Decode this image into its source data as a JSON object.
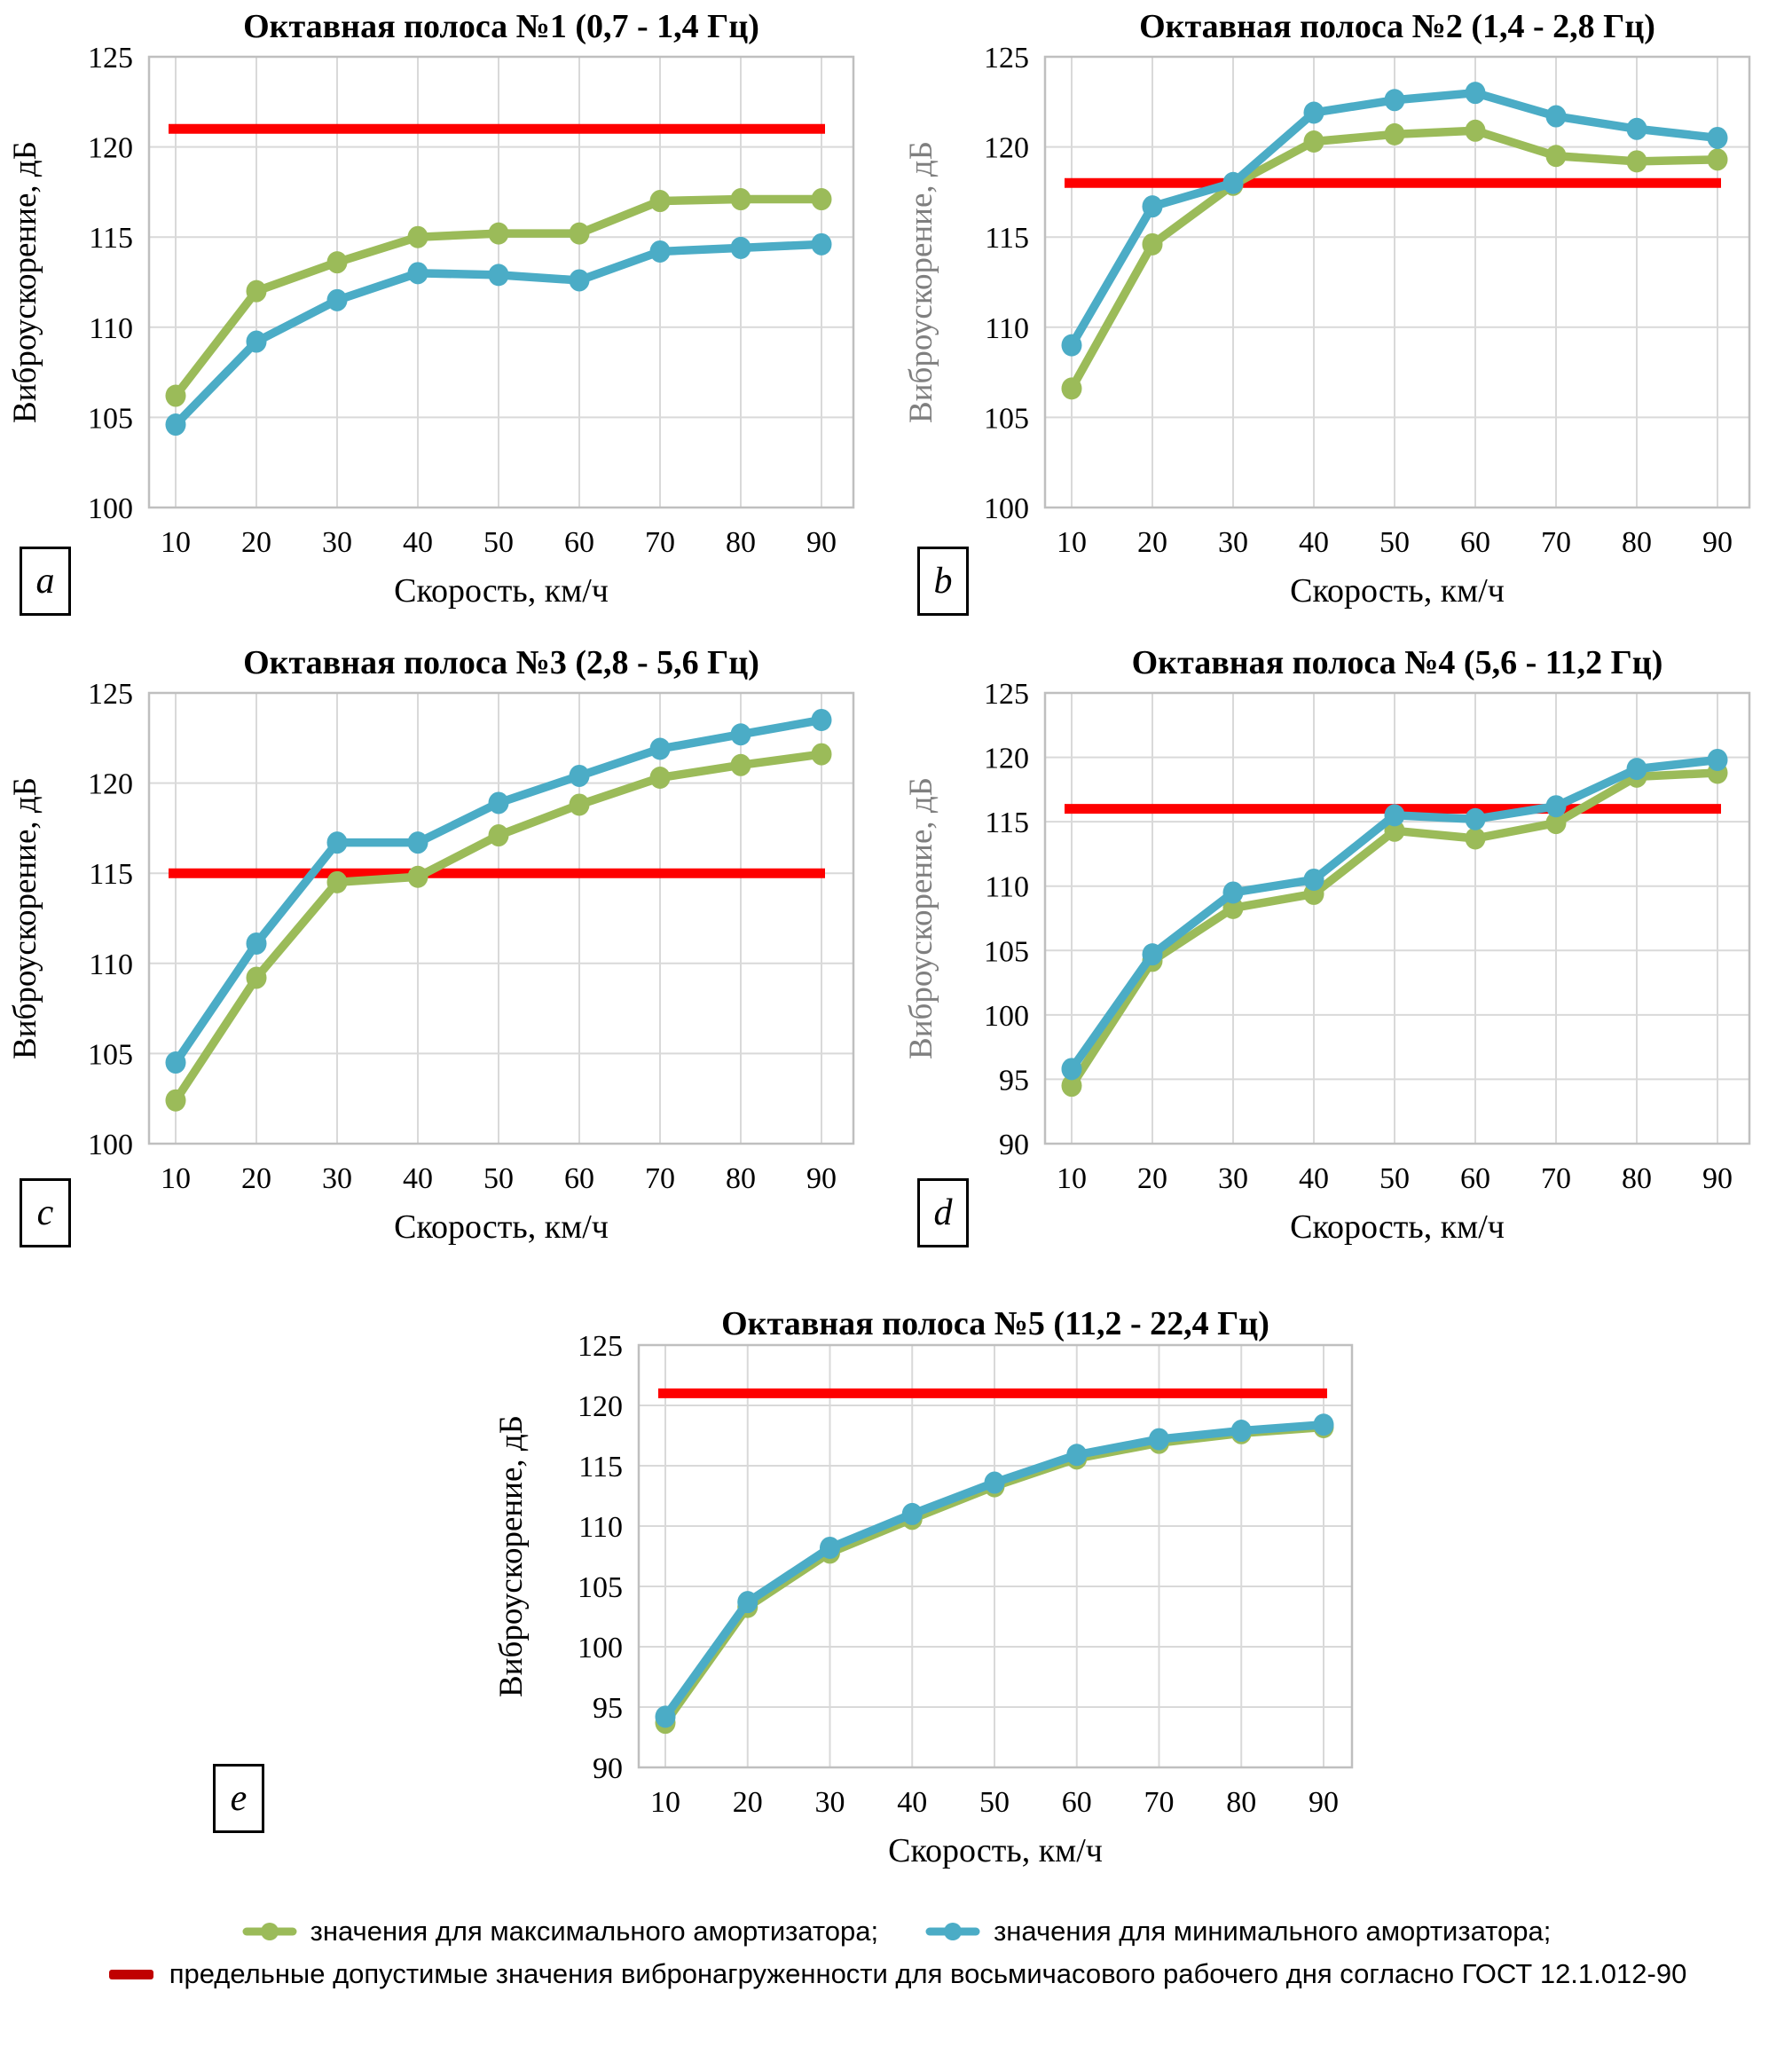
{
  "colors": {
    "max_series": "#9BBB59",
    "min_series": "#4BACC6",
    "limit_line": "#FE0000",
    "legend_limit": "#C00000",
    "grid": "#D9D9D9",
    "plot_border": "#BFBFBF",
    "axis_title_grey": "#7F7F7F",
    "text": "#000000"
  },
  "legend": {
    "max_label": "значения для максимального амортизатора;",
    "min_label": "значения для минимального амортизатора;",
    "limit_label": "предельные допустимые значения вибронагруженности для восьмичасового рабочего дня согласно ГОСТ 12.1.012-90"
  },
  "chart_data": [
    {
      "type": "line",
      "panel_label": "a",
      "title": "Октавная полоса №1 (0,7 - 1,4 Гц)",
      "xlabel": "Скорость, км/ч",
      "ylabel": "Виброускорение, дБ",
      "ylabel_grey": false,
      "categories": [
        10,
        20,
        30,
        40,
        50,
        60,
        70,
        80,
        90
      ],
      "ylim": [
        100,
        125
      ],
      "ytick_step": 5,
      "grid": true,
      "limit_value": 121,
      "series": [
        {
          "key": "max_series",
          "name": "значения для максимального амортизатора",
          "values": [
            106.2,
            112.0,
            113.6,
            115.0,
            115.2,
            115.2,
            117.0,
            117.1,
            117.1
          ]
        },
        {
          "key": "min_series",
          "name": "значения для минимального амортизатора",
          "values": [
            104.6,
            109.2,
            111.5,
            113.0,
            112.9,
            112.6,
            114.2,
            114.4,
            114.6
          ]
        }
      ]
    },
    {
      "type": "line",
      "panel_label": "b",
      "title": "Октавная полоса №2 (1,4 - 2,8 Гц)",
      "xlabel": "Скорость, км/ч",
      "ylabel": "Виброускорение, дБ",
      "ylabel_grey": true,
      "categories": [
        10,
        20,
        30,
        40,
        50,
        60,
        70,
        80,
        90
      ],
      "ylim": [
        100,
        125
      ],
      "ytick_step": 5,
      "grid": true,
      "limit_value": 118,
      "series": [
        {
          "key": "max_series",
          "name": "значения для максимального амортизатора",
          "values": [
            106.6,
            114.6,
            117.9,
            120.3,
            120.7,
            120.9,
            119.5,
            119.2,
            119.3
          ]
        },
        {
          "key": "min_series",
          "name": "значения для минимального амортизатора",
          "values": [
            109.0,
            116.7,
            118.0,
            121.9,
            122.6,
            123.0,
            121.7,
            121.0,
            120.5
          ]
        }
      ]
    },
    {
      "type": "line",
      "panel_label": "c",
      "title": "Октавная полоса №3 (2,8 - 5,6 Гц)",
      "xlabel": "Скорость, км/ч",
      "ylabel": "Виброускорение, дБ",
      "ylabel_grey": false,
      "categories": [
        10,
        20,
        30,
        40,
        50,
        60,
        70,
        80,
        90
      ],
      "ylim": [
        100,
        125
      ],
      "ytick_step": 5,
      "grid": true,
      "limit_value": 115,
      "series": [
        {
          "key": "max_series",
          "name": "значения для максимального амортизатора",
          "values": [
            102.4,
            109.2,
            114.5,
            114.8,
            117.1,
            118.8,
            120.3,
            121.0,
            121.6
          ]
        },
        {
          "key": "min_series",
          "name": "значения для минимального амортизатора",
          "values": [
            104.5,
            111.1,
            116.7,
            116.7,
            118.9,
            120.4,
            121.9,
            122.7,
            123.5
          ]
        }
      ]
    },
    {
      "type": "line",
      "panel_label": "d",
      "title": "Октавная полоса №4 (5,6 - 11,2 Гц)",
      "xlabel": "Скорость, км/ч",
      "ylabel": "Виброускорение, дБ",
      "ylabel_grey": true,
      "categories": [
        10,
        20,
        30,
        40,
        50,
        60,
        70,
        80,
        90
      ],
      "ylim": [
        90,
        125
      ],
      "ytick_step": 5,
      "grid": true,
      "limit_value": 116,
      "series": [
        {
          "key": "max_series",
          "name": "значения для максимального амортизатора",
          "values": [
            94.5,
            104.2,
            108.3,
            109.4,
            114.3,
            113.7,
            114.9,
            118.5,
            118.8
          ]
        },
        {
          "key": "min_series",
          "name": "значения для минимального амортизатора",
          "values": [
            95.8,
            104.7,
            109.5,
            110.5,
            115.5,
            115.2,
            116.2,
            119.1,
            119.8
          ]
        }
      ]
    },
    {
      "type": "line",
      "panel_label": "e",
      "title": "Октавная полоса №5 (11,2 - 22,4 Гц)",
      "xlabel": "Скорость, км/ч",
      "ylabel": "Виброускорение, дБ",
      "ylabel_grey": false,
      "categories": [
        10,
        20,
        30,
        40,
        50,
        60,
        70,
        80,
        90
      ],
      "ylim": [
        90,
        125
      ],
      "ytick_step": 5,
      "grid": true,
      "limit_value": 121,
      "series": [
        {
          "key": "max_series",
          "name": "значения для максимального амортизатора",
          "values": [
            93.7,
            103.3,
            107.8,
            110.6,
            113.3,
            115.6,
            116.9,
            117.7,
            118.2
          ]
        },
        {
          "key": "min_series",
          "name": "значения для минимального амортизатора",
          "values": [
            94.2,
            103.7,
            108.2,
            111.0,
            113.6,
            115.9,
            117.2,
            117.9,
            118.4
          ]
        }
      ]
    }
  ]
}
